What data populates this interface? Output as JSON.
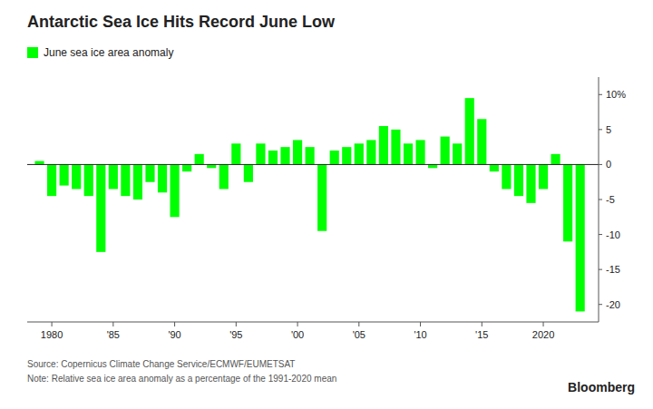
{
  "chart_data": {
    "type": "bar",
    "title": "Antarctic Sea Ice Hits Record June Low",
    "x": [
      1979,
      1980,
      1981,
      1982,
      1983,
      1984,
      1985,
      1986,
      1987,
      1988,
      1989,
      1990,
      1991,
      1992,
      1993,
      1994,
      1995,
      1996,
      1997,
      1998,
      1999,
      2000,
      2001,
      2002,
      2003,
      2004,
      2005,
      2006,
      2007,
      2008,
      2009,
      2010,
      2011,
      2012,
      2013,
      2014,
      2015,
      2016,
      2017,
      2018,
      2019,
      2020,
      2021,
      2022,
      2023
    ],
    "series": [
      {
        "name": "June sea ice area anomaly",
        "color": "#00ff00",
        "values": [
          0.5,
          -4.5,
          -3.0,
          -3.5,
          -4.5,
          -12.5,
          -3.5,
          -4.5,
          -5.0,
          -2.5,
          -4.0,
          -7.5,
          -1.0,
          1.5,
          -0.5,
          -3.5,
          3.0,
          -2.5,
          3.0,
          2.0,
          2.5,
          3.5,
          2.5,
          -9.5,
          2.0,
          2.5,
          3.0,
          3.5,
          5.5,
          5.0,
          3.0,
          3.5,
          -0.5,
          4.0,
          3.0,
          9.5,
          6.5,
          -1.0,
          -3.5,
          -4.5,
          -5.5,
          -3.5,
          1.5,
          -11.0,
          -21.0
        ]
      }
    ],
    "xlim": [
      1978.0,
      2024.5
    ],
    "xticks": [
      1980,
      {
        "value": 1985,
        "label": "'85"
      },
      {
        "value": 1990,
        "label": "'90"
      },
      {
        "value": 1995,
        "label": "'95"
      },
      {
        "value": 2000,
        "label": "'00"
      },
      {
        "value": 2005,
        "label": "'05"
      },
      {
        "value": 2010,
        "label": "'10"
      },
      {
        "value": 2015,
        "label": "'15"
      },
      2020
    ],
    "ylim": [
      -22.5,
      12.5
    ],
    "yticks": [
      {
        "value": 10,
        "label": "10%"
      },
      5,
      0,
      -5,
      -10,
      -15,
      -20
    ],
    "grid": false,
    "legend": "top-left",
    "annotations": [
      "Source: Copernicus Climate Change Service/ECMWF/EUMETSAT",
      "Note: Relative sea ice area anomaly as a percentage of the 1991-2020 mean",
      "Bloomberg"
    ]
  }
}
